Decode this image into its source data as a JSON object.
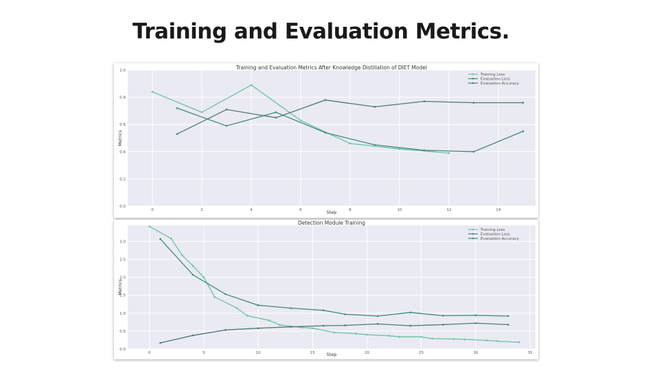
{
  "slide": {
    "title": "Training and Evaluation Metrics."
  },
  "colors": {
    "training_loss": "#66c2a5",
    "evaluation_loss": "#3d8a77",
    "evaluation_accuracy": "#4a7a72",
    "plot_background": "#eaeaf2"
  },
  "chart_data": [
    {
      "type": "line",
      "title": "Training and Evaluation Metrics After Knowledge Distillation of DIET Model",
      "xlabel": "Step",
      "ylabel": "Metrics",
      "xlim": [
        -1,
        15.5
      ],
      "ylim": [
        0.0,
        1.0
      ],
      "xticks": [
        0,
        2,
        4,
        6,
        8,
        10,
        12,
        14
      ],
      "yticks": [
        0.0,
        0.2,
        0.4,
        0.6,
        0.8,
        1.0
      ],
      "xtick_labels": [
        "0",
        "2",
        "4",
        "6",
        "8",
        "10",
        "12",
        "14"
      ],
      "ytick_labels": [
        "0.0",
        "0.2",
        "0.4",
        "0.6",
        "0.8",
        "1.0"
      ],
      "grid": true,
      "legend": "top-right",
      "series": [
        {
          "name": "Training Loss",
          "color_key": "training_loss",
          "x": [
            0,
            2,
            4,
            6,
            8,
            10,
            12
          ],
          "y": [
            0.84,
            0.69,
            0.89,
            0.63,
            0.46,
            0.42,
            0.39
          ]
        },
        {
          "name": "Evaluation Loss",
          "color_key": "evaluation_loss",
          "x": [
            1,
            3,
            5,
            7,
            9,
            11,
            13,
            15
          ],
          "y": [
            0.72,
            0.59,
            0.69,
            0.54,
            0.45,
            0.41,
            0.4,
            0.55
          ]
        },
        {
          "name": "Evaluation Accuracy",
          "color_key": "evaluation_accuracy",
          "x": [
            1,
            3,
            5,
            7,
            9,
            11,
            13,
            15
          ],
          "y": [
            0.53,
            0.71,
            0.65,
            0.78,
            0.73,
            0.77,
            0.76,
            0.76
          ]
        }
      ]
    },
    {
      "type": "line",
      "title": "Detection Module Training",
      "xlabel": "Step",
      "ylabel": "Metrics",
      "xlim": [
        -2,
        35.5
      ],
      "ylim": [
        0.0,
        3.45
      ],
      "xticks": [
        0,
        5,
        10,
        15,
        20,
        25,
        30,
        35
      ],
      "yticks": [
        0.0,
        0.5,
        1.0,
        1.5,
        2.0,
        2.5,
        3.0
      ],
      "xtick_labels": [
        "0",
        "5",
        "10",
        "15",
        "20",
        "25",
        "30",
        "35"
      ],
      "ytick_labels": [
        "0.0",
        "0.5",
        "1.0",
        "1.5",
        "2.0",
        "2.5",
        "3.0"
      ],
      "grid": true,
      "legend": "top-right",
      "series": [
        {
          "name": "Training Loss",
          "color_key": "training_loss",
          "x": [
            0,
            2,
            3,
            4,
            5,
            6,
            8,
            9,
            11,
            12,
            14,
            15,
            17,
            19,
            20,
            22,
            23,
            25,
            26,
            28,
            29,
            31,
            32,
            34
          ],
          "y": [
            3.42,
            3.08,
            2.62,
            2.32,
            2.0,
            1.45,
            1.15,
            0.93,
            0.8,
            0.67,
            0.6,
            0.58,
            0.46,
            0.43,
            0.4,
            0.37,
            0.34,
            0.34,
            0.29,
            0.28,
            0.27,
            0.24,
            0.22,
            0.19
          ]
        },
        {
          "name": "Evaluation Loss",
          "color_key": "evaluation_loss",
          "x": [
            1,
            4,
            7,
            10,
            13,
            16,
            18,
            21,
            24,
            27,
            30,
            33
          ],
          "y": [
            3.07,
            2.07,
            1.53,
            1.22,
            1.14,
            1.08,
            0.97,
            0.92,
            1.02,
            0.93,
            0.94,
            0.92
          ]
        },
        {
          "name": "Evaluation Accuracy",
          "color_key": "evaluation_accuracy",
          "x": [
            1,
            4,
            7,
            10,
            13,
            16,
            18,
            21,
            24,
            27,
            30,
            33
          ],
          "y": [
            0.17,
            0.38,
            0.53,
            0.58,
            0.62,
            0.65,
            0.66,
            0.7,
            0.65,
            0.68,
            0.72,
            0.68
          ]
        }
      ]
    }
  ]
}
